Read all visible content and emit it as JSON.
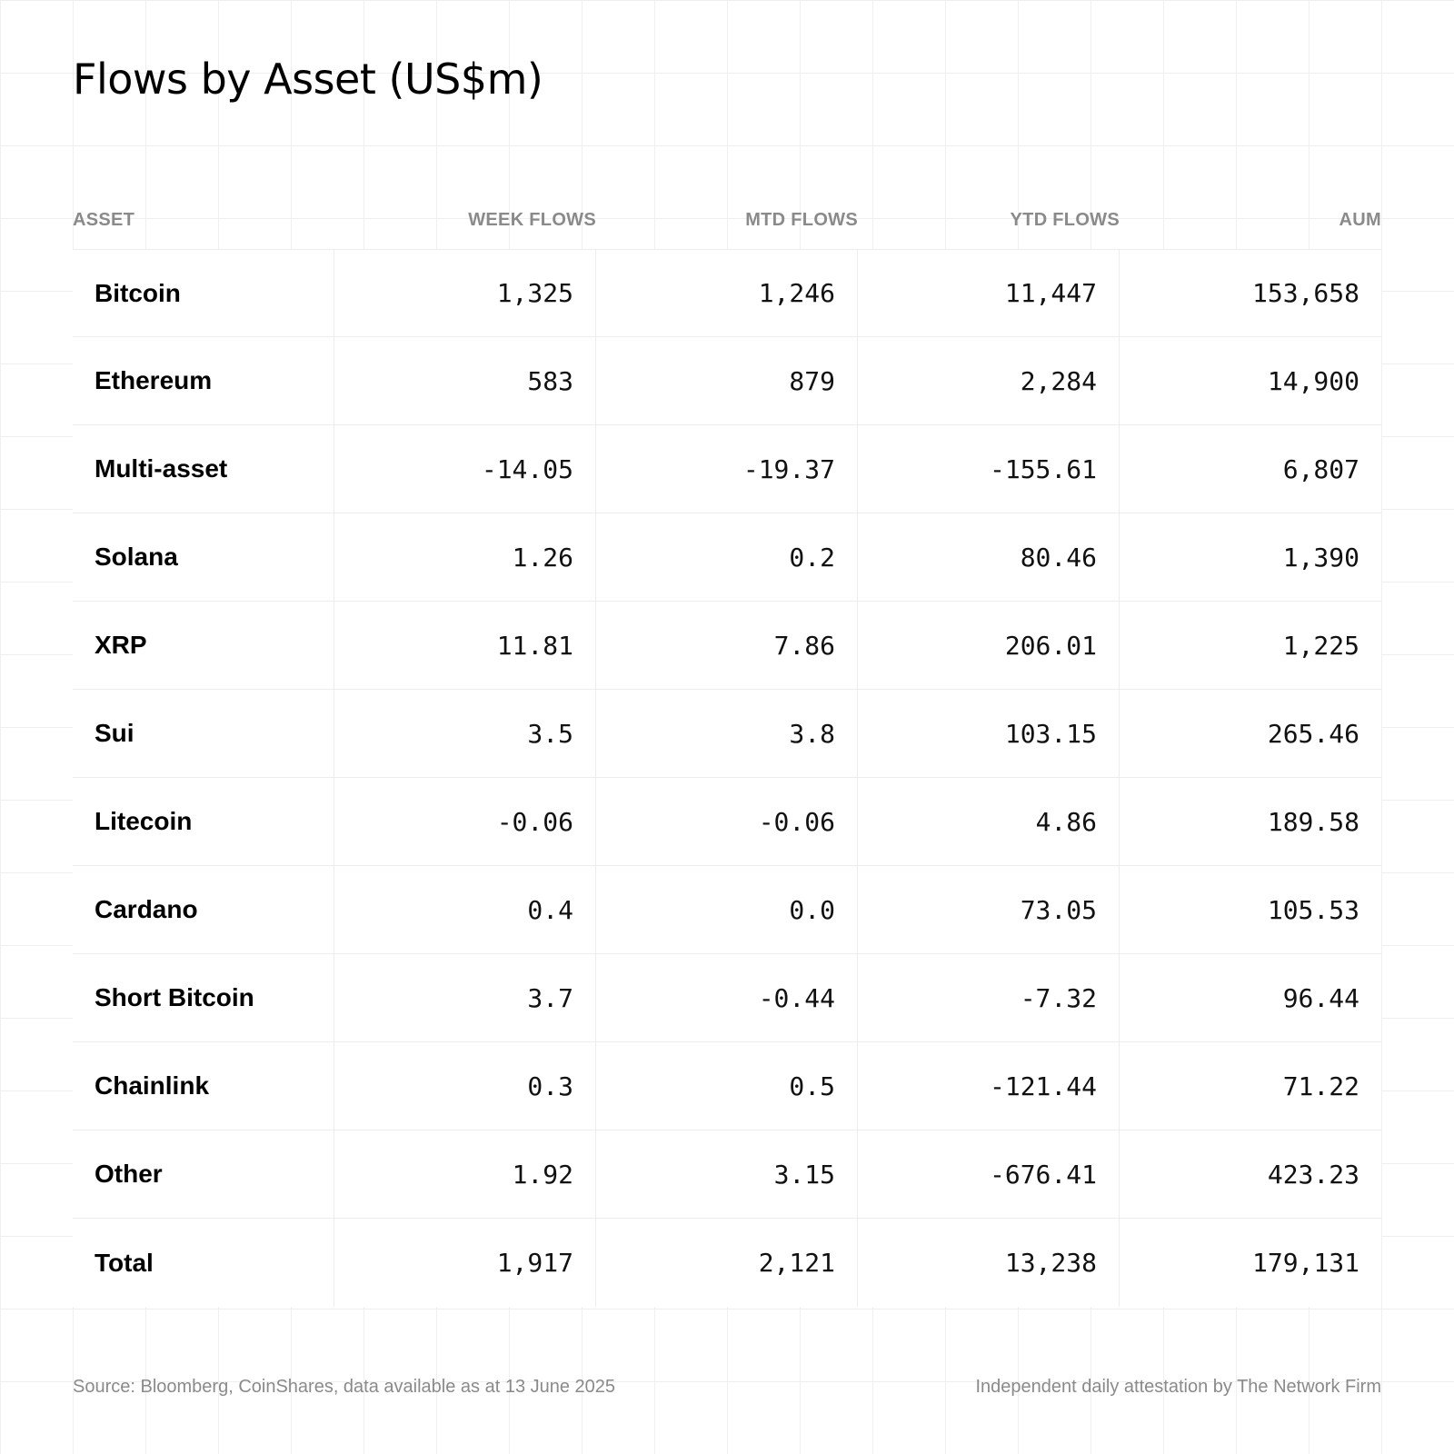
{
  "title": "Flows by Asset (US$m)",
  "chart_data": {
    "type": "table",
    "title": "Flows by Asset (US$m)",
    "columns": [
      "ASSET",
      "WEEK FLOWS",
      "MTD FLOWS",
      "YTD FLOWS",
      "AUM"
    ],
    "rows": [
      {
        "asset": "Bitcoin",
        "week": "1,325",
        "mtd": "1,246",
        "ytd": "11,447",
        "aum": "153,658"
      },
      {
        "asset": "Ethereum",
        "week": "583",
        "mtd": "879",
        "ytd": "2,284",
        "aum": "14,900"
      },
      {
        "asset": "Multi-asset",
        "week": "-14.05",
        "mtd": "-19.37",
        "ytd": "-155.61",
        "aum": "6,807"
      },
      {
        "asset": "Solana",
        "week": "1.26",
        "mtd": "0.2",
        "ytd": "80.46",
        "aum": "1,390"
      },
      {
        "asset": "XRP",
        "week": "11.81",
        "mtd": "7.86",
        "ytd": "206.01",
        "aum": "1,225"
      },
      {
        "asset": "Sui",
        "week": "3.5",
        "mtd": "3.8",
        "ytd": "103.15",
        "aum": "265.46"
      },
      {
        "asset": "Litecoin",
        "week": "-0.06",
        "mtd": "-0.06",
        "ytd": "4.86",
        "aum": "189.58"
      },
      {
        "asset": "Cardano",
        "week": "0.4",
        "mtd": "0.0",
        "ytd": "73.05",
        "aum": "105.53"
      },
      {
        "asset": "Short Bitcoin",
        "week": "3.7",
        "mtd": "-0.44",
        "ytd": "-7.32",
        "aum": "96.44"
      },
      {
        "asset": "Chainlink",
        "week": "0.3",
        "mtd": "0.5",
        "ytd": "-121.44",
        "aum": "71.22"
      },
      {
        "asset": "Other",
        "week": "1.92",
        "mtd": "3.15",
        "ytd": "-676.41",
        "aum": "423.23"
      },
      {
        "asset": "Total",
        "week": "1,917",
        "mtd": "2,121",
        "ytd": "13,238",
        "aum": "179,131"
      }
    ]
  },
  "footer": {
    "source": "Source: Bloomberg, CoinShares, data available as at 13 June 2025",
    "attestation": "Independent daily attestation by The Network Firm"
  }
}
